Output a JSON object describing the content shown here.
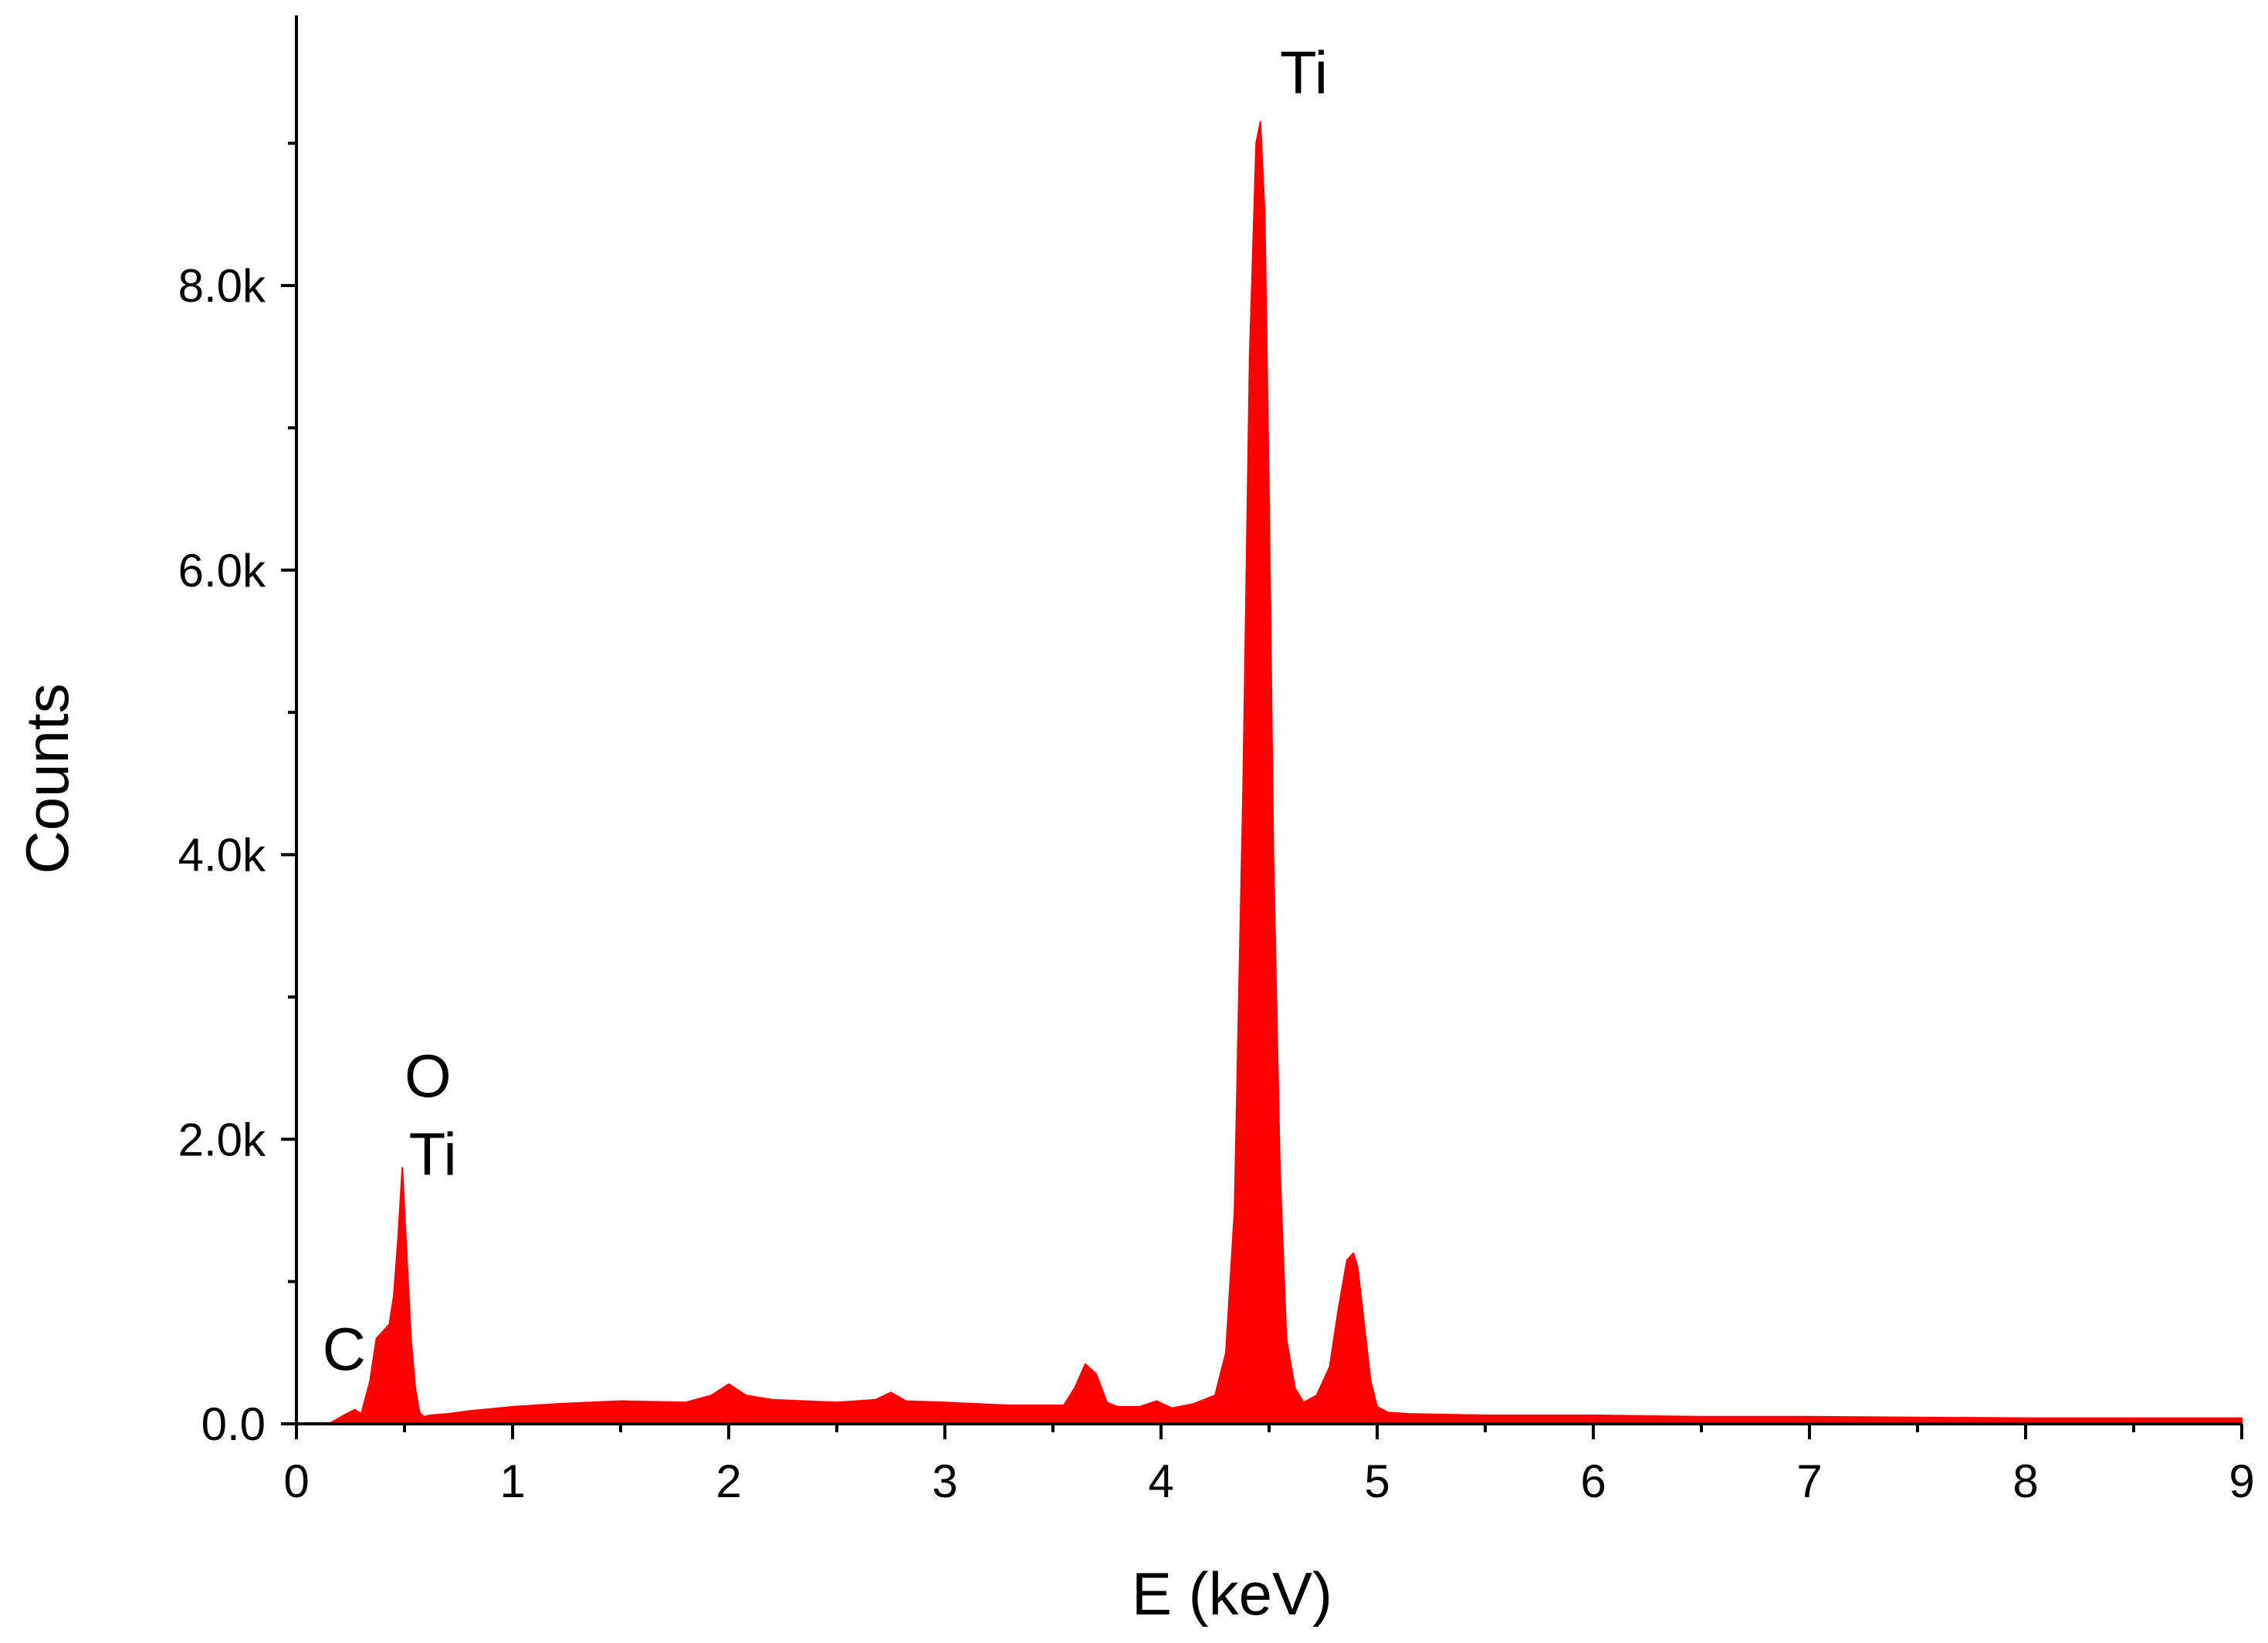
{
  "chart_data": {
    "type": "area",
    "title": "",
    "xlabel": "E (keV)",
    "ylabel": "Counts",
    "xlim": [
      0,
      9
    ],
    "ylim": [
      0,
      10000
    ],
    "grid": false,
    "legend": "none",
    "fill_color": "#ff0000",
    "x_ticks": [
      {
        "value": 0,
        "label": "0"
      },
      {
        "value": 1,
        "label": "1"
      },
      {
        "value": 2,
        "label": "2"
      },
      {
        "value": 3,
        "label": "3"
      },
      {
        "value": 4,
        "label": "4"
      },
      {
        "value": 5,
        "label": "5"
      },
      {
        "value": 6,
        "label": "6"
      },
      {
        "value": 7,
        "label": "7"
      },
      {
        "value": 8,
        "label": "8"
      },
      {
        "value": 9,
        "label": "9"
      }
    ],
    "y_ticks": [
      {
        "value": 0,
        "label": "0.0"
      },
      {
        "value": 2000,
        "label": "2.0k"
      },
      {
        "value": 4000,
        "label": "4.0k"
      },
      {
        "value": 6000,
        "label": "6.0k"
      },
      {
        "value": 8000,
        "label": "8.0k"
      }
    ],
    "x_minor_step": 0.5,
    "y_minor_step": 1000,
    "series": [
      {
        "x": [
          0.15,
          0.22,
          0.27,
          0.3,
          0.34,
          0.37,
          0.4,
          0.43,
          0.45,
          0.47,
          0.49,
          0.51,
          0.53,
          0.55,
          0.57,
          0.59,
          0.62,
          0.7,
          0.8,
          1.0,
          1.2,
          1.5,
          1.8,
          1.92,
          2.0,
          2.08,
          2.2,
          2.5,
          2.68,
          2.75,
          2.82,
          3.0,
          3.3,
          3.55,
          3.6,
          3.65,
          3.7,
          3.75,
          3.8,
          3.9,
          3.98,
          4.05,
          4.15,
          4.25,
          4.3,
          4.34,
          4.38,
          4.41,
          4.44,
          4.46,
          4.48,
          4.5,
          4.52,
          4.55,
          4.58,
          4.62,
          4.66,
          4.72,
          4.78,
          4.82,
          4.86,
          4.89,
          4.91,
          4.94,
          4.97,
          5.0,
          5.05,
          5.15,
          5.5,
          6.0,
          6.5,
          7.0,
          7.5,
          8.0,
          8.5,
          9.0
        ],
        "y": [
          0,
          60,
          100,
          70,
          300,
          600,
          650,
          700,
          900,
          1300,
          1800,
          1200,
          600,
          250,
          80,
          50,
          60,
          70,
          90,
          120,
          140,
          160,
          150,
          200,
          280,
          200,
          170,
          150,
          170,
          220,
          160,
          150,
          130,
          130,
          250,
          420,
          350,
          150,
          120,
          120,
          160,
          110,
          140,
          200,
          500,
          1500,
          4500,
          7500,
          9000,
          9150,
          8500,
          6500,
          4000,
          1800,
          600,
          250,
          150,
          200,
          400,
          800,
          1150,
          1200,
          1100,
          700,
          300,
          120,
          80,
          70,
          60,
          60,
          50,
          50,
          45,
          40,
          40,
          40
        ]
      }
    ],
    "annotations": [
      {
        "text": "Ti",
        "x": 4.55,
        "y": 9350
      },
      {
        "text": "O",
        "x": 0.5,
        "y": 2300
      },
      {
        "text": "Ti",
        "x": 0.52,
        "y": 1750
      },
      {
        "text": "C",
        "x": 0.12,
        "y": 380
      }
    ]
  }
}
